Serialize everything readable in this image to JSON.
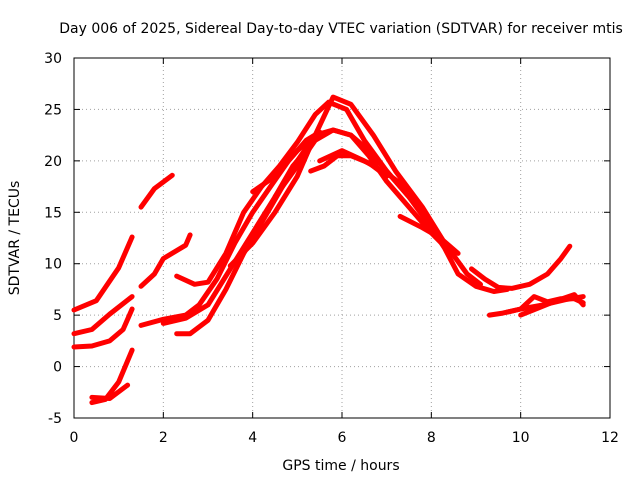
{
  "chart_data": {
    "type": "line",
    "title": "Day 006 of 2025, Sidereal Day-to-day VTEC variation (SDTVAR) for receiver mtis",
    "xlabel": "GPS time / hours",
    "ylabel": "SDTVAR / TECUs",
    "xlim": [
      0,
      12
    ],
    "ylim": [
      -5,
      30
    ],
    "xticks": [
      0,
      2,
      4,
      6,
      8,
      10,
      12
    ],
    "yticks": [
      -5,
      0,
      5,
      10,
      15,
      20,
      25,
      30
    ],
    "grid": true,
    "series_color": "#ff0000",
    "series": [
      {
        "name": "s1",
        "x": [
          0.0,
          0.5,
          1.0,
          1.3
        ],
        "y": [
          5.5,
          6.4,
          9.6,
          12.6
        ]
      },
      {
        "name": "s2",
        "x": [
          0.0,
          0.4,
          0.8,
          1.3
        ],
        "y": [
          3.2,
          3.6,
          5.1,
          6.8
        ]
      },
      {
        "name": "s3",
        "x": [
          0.0,
          0.4,
          0.8,
          1.1,
          1.3
        ],
        "y": [
          1.9,
          2.0,
          2.5,
          3.6,
          5.6
        ]
      },
      {
        "name": "s4",
        "x": [
          0.4,
          0.7,
          1.0,
          1.3
        ],
        "y": [
          -3.5,
          -3.2,
          -1.5,
          1.6
        ]
      },
      {
        "name": "s5",
        "x": [
          0.4,
          0.8,
          1.2
        ],
        "y": [
          -3.0,
          -3.1,
          -1.8
        ]
      },
      {
        "name": "s6",
        "x": [
          1.5,
          1.8,
          2.2
        ],
        "y": [
          15.5,
          17.3,
          18.6
        ]
      },
      {
        "name": "s7",
        "x": [
          1.5,
          1.8,
          2.0,
          2.5,
          2.6
        ],
        "y": [
          7.8,
          9.0,
          10.5,
          11.8,
          12.8
        ]
      },
      {
        "name": "s8",
        "x": [
          1.5,
          2.0,
          2.5,
          2.8,
          3.2,
          3.6,
          4.0,
          4.4,
          4.8,
          5.2,
          5.5
        ],
        "y": [
          4.0,
          4.6,
          5.0,
          6.0,
          8.5,
          12.0,
          15.0,
          17.5,
          20.0,
          22.0,
          22.8
        ]
      },
      {
        "name": "s9",
        "x": [
          2.3,
          2.7,
          3.0,
          3.4,
          3.8,
          4.2,
          4.6,
          5.0,
          5.4,
          5.7,
          6.1,
          6.5,
          7.0,
          7.5,
          8.0,
          8.3,
          8.6,
          9.0,
          9.4,
          9.7
        ],
        "y": [
          8.8,
          8.0,
          8.2,
          11.0,
          15.0,
          17.5,
          19.5,
          21.8,
          24.5,
          25.7,
          25.0,
          22.0,
          19.0,
          16.5,
          13.5,
          11.5,
          9.0,
          7.8,
          7.3,
          7.5
        ]
      },
      {
        "name": "s10",
        "x": [
          2.3,
          2.6,
          3.0,
          3.4,
          3.8,
          4.2,
          4.6,
          5.0,
          5.4,
          5.8,
          6.2,
          6.6,
          7.0,
          7.5,
          8.0,
          8.5
        ],
        "y": [
          3.2,
          3.2,
          4.5,
          7.5,
          11.0,
          14.0,
          17.0,
          20.0,
          22.5,
          23.0,
          22.5,
          20.5,
          18.0,
          15.5,
          13.0,
          10.8
        ]
      },
      {
        "name": "s11",
        "x": [
          2.0,
          2.5,
          3.0,
          3.5,
          4.0,
          4.5,
          5.0,
          5.4,
          5.8,
          6.2,
          6.6,
          7.0,
          7.5,
          8.0,
          8.3
        ],
        "y": [
          4.2,
          4.7,
          6.0,
          9.5,
          13.0,
          16.5,
          19.5,
          22.0,
          23.0,
          22.5,
          21.0,
          19.0,
          16.5,
          14.0,
          12.0
        ]
      },
      {
        "name": "s12",
        "x": [
          3.5,
          4.0,
          4.5,
          5.0,
          5.4,
          5.8,
          6.2,
          6.7,
          7.2,
          7.8,
          8.3,
          8.8,
          9.1
        ],
        "y": [
          9.8,
          12.0,
          15.0,
          18.5,
          22.5,
          26.2,
          25.5,
          22.5,
          19.0,
          15.5,
          12.0,
          9.0,
          8.0
        ]
      },
      {
        "name": "s13",
        "x": [
          4.0,
          4.5,
          5.0,
          5.4
        ],
        "y": [
          17.0,
          18.5,
          21.0,
          22.5
        ]
      },
      {
        "name": "s14",
        "x": [
          4.5,
          4.9,
          5.3
        ],
        "y": [
          16.5,
          19.5,
          21.5
        ]
      },
      {
        "name": "s15",
        "x": [
          5.3,
          5.6,
          5.9,
          6.2,
          6.6,
          7.0
        ],
        "y": [
          19.0,
          19.5,
          20.5,
          20.5,
          19.8,
          18.5
        ]
      },
      {
        "name": "s16",
        "x": [
          5.5,
          6.0,
          6.5,
          7.0,
          7.5
        ],
        "y": [
          20.0,
          21.0,
          20.0,
          18.8,
          17.2
        ]
      },
      {
        "name": "s17",
        "x": [
          7.3,
          7.8,
          8.2,
          8.6
        ],
        "y": [
          14.6,
          13.5,
          12.5,
          11.0
        ]
      },
      {
        "name": "s18",
        "x": [
          8.9,
          9.2,
          9.5,
          9.8,
          10.2,
          10.6,
          10.9,
          11.1
        ],
        "y": [
          9.5,
          8.5,
          7.7,
          7.6,
          8.0,
          9.0,
          10.5,
          11.7
        ]
      },
      {
        "name": "s19",
        "x": [
          9.3,
          9.6,
          10.0,
          10.5,
          11.0,
          11.4
        ],
        "y": [
          5.0,
          5.2,
          5.6,
          6.0,
          6.5,
          6.8
        ]
      },
      {
        "name": "s20",
        "x": [
          9.7,
          10.0,
          10.3,
          10.6,
          10.9,
          11.2,
          11.4
        ],
        "y": [
          5.3,
          5.6,
          6.8,
          6.3,
          6.6,
          6.6,
          6.2
        ]
      },
      {
        "name": "s21",
        "x": [
          10.0,
          10.4,
          10.8,
          11.2,
          11.4
        ],
        "y": [
          5.0,
          5.7,
          6.4,
          7.0,
          6.0
        ]
      }
    ]
  }
}
